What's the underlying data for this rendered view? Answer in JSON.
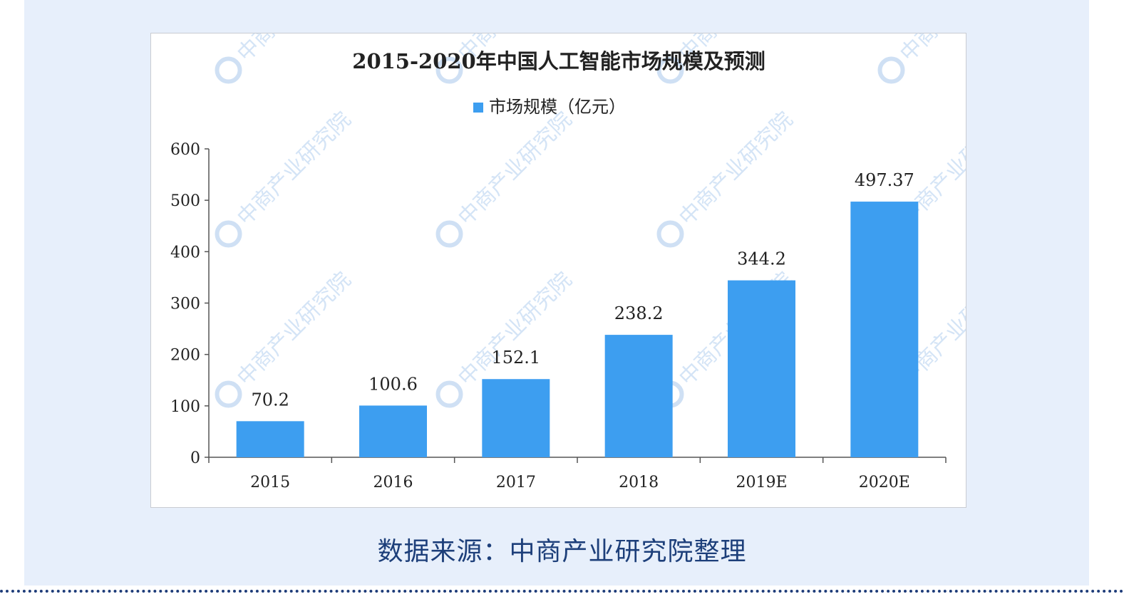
{
  "chart_data": {
    "type": "bar",
    "title": "2015-2020年中国人工智能市场规模及预测",
    "legend": {
      "position": "top-center"
    },
    "categories": [
      "2015",
      "2016",
      "2017",
      "2018",
      "2019E",
      "2020E"
    ],
    "series": [
      {
        "name": "市场规模（亿元）",
        "values": [
          70.2,
          100.6,
          152.1,
          238.2,
          344.2,
          497.37
        ]
      }
    ],
    "data_labels": [
      "70.2",
      "100.6",
      "152.1",
      "238.2",
      "344.2",
      "497.37"
    ],
    "ylim": [
      0,
      600
    ],
    "yticks": [
      0,
      100,
      200,
      300,
      400,
      500,
      600
    ],
    "xlabel": "",
    "ylabel": "",
    "grid": false,
    "bar_color": "#3d9ef0"
  },
  "watermark": "中商产业研究院",
  "source_caption": "数据来源：中商产业研究院整理",
  "colors": {
    "panel_background": "#e7effb",
    "caption_text": "#1d3f7a",
    "divider": "#1f3d7a"
  }
}
